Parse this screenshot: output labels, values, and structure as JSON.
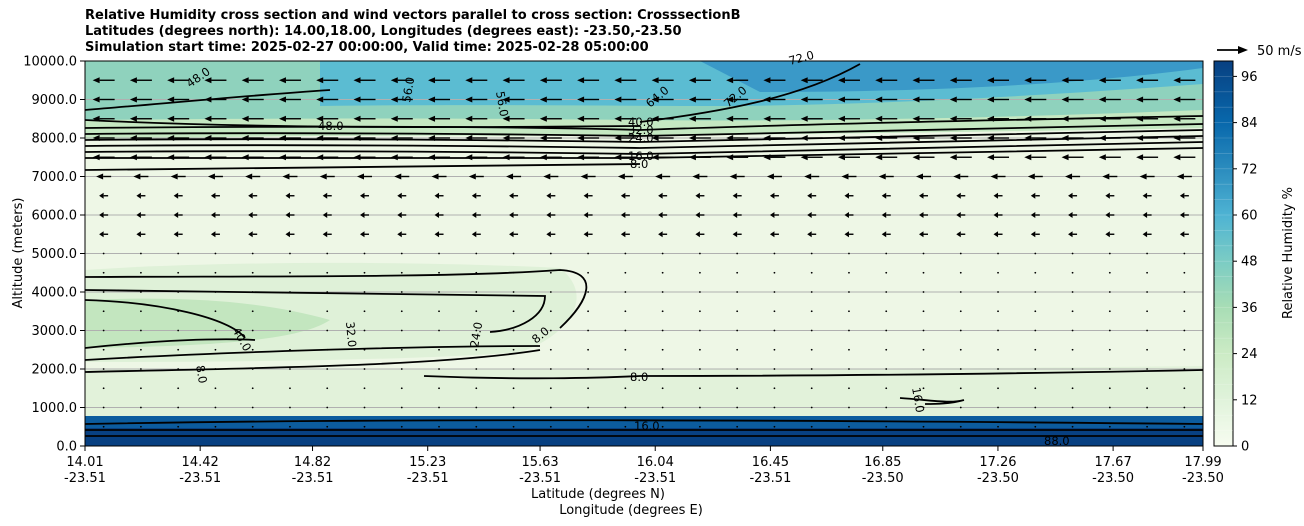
{
  "chart_data": {
    "type": "contour",
    "title_lines": [
      "Relative Humidity cross section and wind vectors parallel to cross section: CrosssectionB",
      "Latitudes (degrees north): 14.00,18.00, Longitudes (degrees east): -23.50,-23.50",
      "Simulation start time: 2025-02-27 00:00:00, Valid time: 2025-02-28 05:00:00"
    ],
    "ylabel": "Altitude (meters)",
    "xlabel_lat": "Latitude (degrees N)",
    "xlabel_lon": "Longitude (degrees E)",
    "ylim": [
      0,
      10000
    ],
    "y_ticks": [
      "0.0",
      "1000.0",
      "2000.0",
      "3000.0",
      "4000.0",
      "5000.0",
      "6000.0",
      "7000.0",
      "8000.0",
      "9000.0",
      "10000.0"
    ],
    "x_ticks": [
      {
        "lat": "14.01",
        "lon": "-23.51"
      },
      {
        "lat": "14.42",
        "lon": "-23.51"
      },
      {
        "lat": "14.82",
        "lon": "-23.51"
      },
      {
        "lat": "15.23",
        "lon": "-23.51"
      },
      {
        "lat": "15.63",
        "lon": "-23.51"
      },
      {
        "lat": "16.04",
        "lon": "-23.51"
      },
      {
        "lat": "16.45",
        "lon": "-23.51"
      },
      {
        "lat": "16.85",
        "lon": "-23.50"
      },
      {
        "lat": "17.26",
        "lon": "-23.50"
      },
      {
        "lat": "17.67",
        "lon": "-23.50"
      },
      {
        "lat": "17.99",
        "lon": "-23.50"
      }
    ],
    "colorbar": {
      "label": "Relative Humidity %",
      "ticks": [
        "0",
        "12",
        "24",
        "36",
        "48",
        "60",
        "72",
        "84",
        "96"
      ],
      "range": [
        0,
        100
      ],
      "colormap": "GnBu"
    },
    "wind_key": {
      "label": "50 m/s"
    },
    "contour_labels": [
      "48.0",
      "56.0",
      "56.0",
      "64.0",
      "72.0",
      "72.0",
      "48.0",
      "40.0",
      "32.0",
      "24.0",
      "16.0",
      "8.0",
      "40.0",
      "32.0",
      "24.0",
      "8.0",
      "8.0",
      "8.0",
      "16.0",
      "16.0",
      "88.0"
    ],
    "grid": true
  }
}
